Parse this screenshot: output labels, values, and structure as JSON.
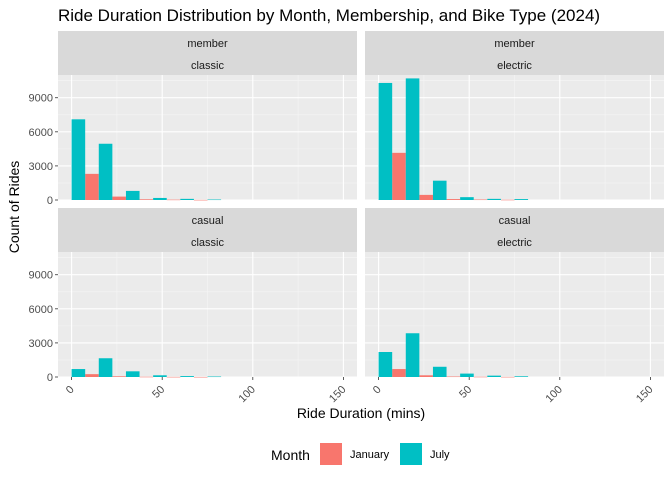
{
  "chart_data": {
    "type": "bar",
    "title": "Ride Duration Distribution by Month, Membership, and Bike Type (2024)",
    "xlabel": "Ride Duration (mins)",
    "ylabel": "Count of Rides",
    "xlim": [
      -7.5,
      157.5
    ],
    "ylim": [
      0,
      11000
    ],
    "x_ticks": [
      0,
      50,
      100,
      150
    ],
    "y_ticks": [
      0,
      3000,
      6000,
      9000
    ],
    "bin_width": 15,
    "grid": true,
    "legend": {
      "title": "Month",
      "position": "bottom",
      "entries": [
        {
          "name": "January",
          "color": "#F8766D"
        },
        {
          "name": "July",
          "color": "#00BFC4"
        }
      ]
    },
    "panels": [
      {
        "strip": [
          "member",
          "classic"
        ],
        "series": [
          {
            "name": "January",
            "bins": [
              0,
              15,
              30,
              45,
              60,
              75
            ],
            "values": [
              0,
              2300,
              300,
              60,
              30,
              10
            ]
          },
          {
            "name": "July",
            "bins": [
              0,
              15,
              30,
              45,
              60,
              75
            ],
            "values": [
              7100,
              4950,
              800,
              180,
              100,
              40
            ]
          }
        ]
      },
      {
        "strip": [
          "member",
          "electric"
        ],
        "series": [
          {
            "name": "January",
            "bins": [
              0,
              15,
              30,
              45,
              60,
              75
            ],
            "values": [
              0,
              4150,
              450,
              80,
              40,
              20
            ]
          },
          {
            "name": "July",
            "bins": [
              0,
              15,
              30,
              45,
              60,
              75
            ],
            "values": [
              10300,
              10700,
              1700,
              250,
              100,
              80
            ]
          }
        ]
      },
      {
        "strip": [
          "casual",
          "classic"
        ],
        "series": [
          {
            "name": "January",
            "bins": [
              0,
              15,
              30,
              45,
              60,
              75
            ],
            "values": [
              0,
              250,
              60,
              20,
              10,
              5
            ]
          },
          {
            "name": "July",
            "bins": [
              0,
              15,
              30,
              45,
              60,
              75
            ],
            "values": [
              700,
              1650,
              500,
              150,
              80,
              40
            ]
          }
        ]
      },
      {
        "strip": [
          "casual",
          "electric"
        ],
        "series": [
          {
            "name": "January",
            "bins": [
              0,
              15,
              30,
              45,
              60,
              75
            ],
            "values": [
              0,
              700,
              150,
              40,
              20,
              10
            ]
          },
          {
            "name": "July",
            "bins": [
              0,
              15,
              30,
              45,
              60,
              75
            ],
            "values": [
              2200,
              3850,
              900,
              300,
              120,
              60
            ]
          }
        ]
      }
    ]
  }
}
